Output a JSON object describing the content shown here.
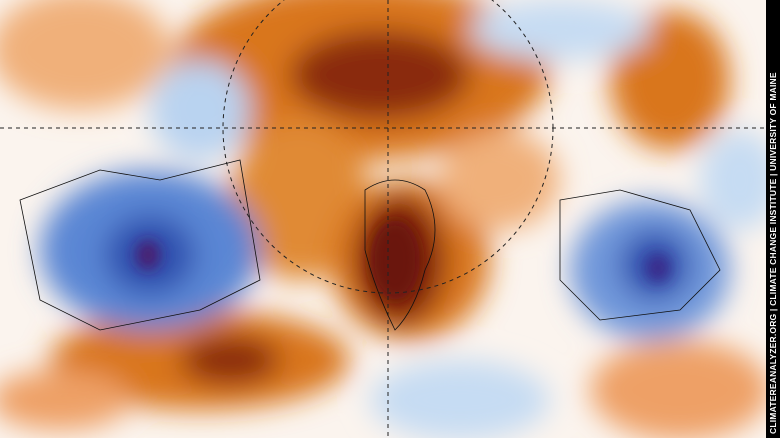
{
  "credit": "CLIMATEREANALYZER.ORG | CLIMATE CHANGE INSTITUTE | UNIVERSITY OF MAINE"
}
